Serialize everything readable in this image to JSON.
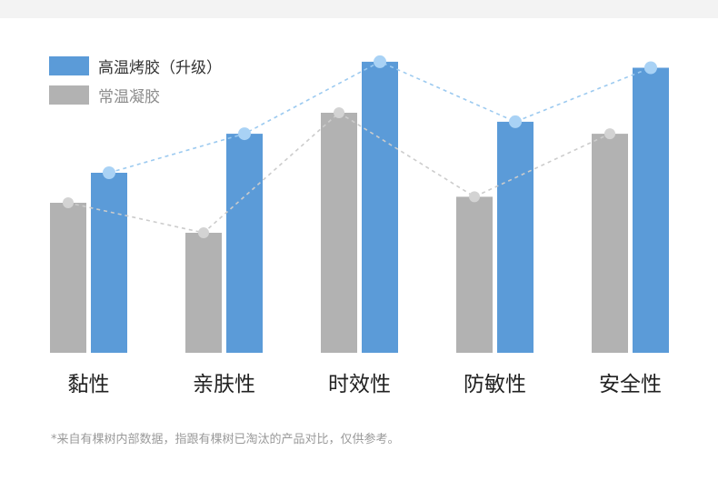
{
  "chart_data": {
    "type": "bar",
    "categories": [
      "黏性",
      "亲肤性",
      "时效性",
      "防敏性",
      "安全性"
    ],
    "series": [
      {
        "name": "常温凝胶",
        "values": [
          5,
          4,
          8,
          5.2,
          7.3
        ],
        "color": "#b2b2b2"
      },
      {
        "name": "高温烤胶（升级）",
        "values": [
          6,
          7.3,
          9.7,
          7.7,
          9.5
        ],
        "color": "#5b9bd8"
      }
    ],
    "ylim": [
      0,
      10
    ],
    "grid": false,
    "legend_position": "top-left",
    "trend_lines": true,
    "trend_colors": [
      "#cccccc",
      "#9ccaf0"
    ]
  },
  "footnote": "*来自有棵树内部数据，指跟有棵树已淘汰的产品对比，仅供参考。"
}
